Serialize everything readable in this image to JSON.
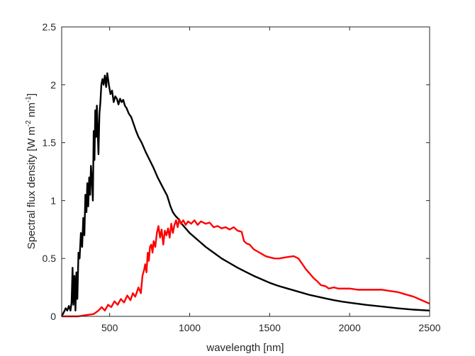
{
  "chart_data": {
    "type": "line",
    "title": "",
    "xlabel": "wavelength [nm]",
    "ylabel": {
      "prefix": "Spectral flux density [W m",
      "exp1": "-2",
      "mid": " nm",
      "exp2": "-1",
      "suffix": "]"
    },
    "xlim": [
      200,
      2500
    ],
    "ylim": [
      0,
      2.5
    ],
    "xticks": [
      500,
      1000,
      1500,
      2000,
      2500
    ],
    "xtick_labels": [
      "500",
      "1000",
      "1500",
      "2000",
      "2500"
    ],
    "yticks": [
      0,
      0.5,
      1,
      1.5,
      2,
      2.5
    ],
    "ytick_labels": [
      "0",
      "0.5",
      "1",
      "1.5",
      "2",
      "2.5"
    ],
    "grid": false,
    "legend": "none",
    "series": [
      {
        "color": "#000000",
        "points": [
          [
            200,
            0.0
          ],
          [
            215,
            0.04
          ],
          [
            225,
            0.07
          ],
          [
            235,
            0.05
          ],
          [
            245,
            0.09
          ],
          [
            255,
            0.05
          ],
          [
            262,
            0.12
          ],
          [
            268,
            0.42
          ],
          [
            273,
            0.1
          ],
          [
            280,
            0.35
          ],
          [
            286,
            0.05
          ],
          [
            292,
            0.38
          ],
          [
            298,
            0.15
          ],
          [
            305,
            0.55
          ],
          [
            312,
            0.5
          ],
          [
            320,
            0.72
          ],
          [
            328,
            0.6
          ],
          [
            335,
            0.85
          ],
          [
            342,
            0.7
          ],
          [
            348,
            1.05
          ],
          [
            355,
            0.9
          ],
          [
            360,
            1.15
          ],
          [
            366,
            0.95
          ],
          [
            372,
            1.2
          ],
          [
            378,
            1.05
          ],
          [
            383,
            1.3
          ],
          [
            390,
            1.15
          ],
          [
            395,
            1.0
          ],
          [
            400,
            1.6
          ],
          [
            405,
            1.35
          ],
          [
            410,
            1.78
          ],
          [
            416,
            1.55
          ],
          [
            420,
            1.82
          ],
          [
            425,
            1.6
          ],
          [
            430,
            1.4
          ],
          [
            436,
            1.75
          ],
          [
            442,
            1.85
          ],
          [
            448,
            2.0
          ],
          [
            455,
            2.05
          ],
          [
            462,
            2.0
          ],
          [
            470,
            2.08
          ],
          [
            478,
            1.98
          ],
          [
            485,
            2.1
          ],
          [
            495,
            2.0
          ],
          [
            505,
            1.92
          ],
          [
            515,
            1.95
          ],
          [
            525,
            1.85
          ],
          [
            535,
            1.9
          ],
          [
            545,
            1.88
          ],
          [
            555,
            1.83
          ],
          [
            565,
            1.88
          ],
          [
            575,
            1.85
          ],
          [
            585,
            1.87
          ],
          [
            595,
            1.82
          ],
          [
            605,
            1.8
          ],
          [
            620,
            1.75
          ],
          [
            635,
            1.72
          ],
          [
            650,
            1.66
          ],
          [
            665,
            1.6
          ],
          [
            680,
            1.55
          ],
          [
            700,
            1.5
          ],
          [
            725,
            1.42
          ],
          [
            750,
            1.35
          ],
          [
            775,
            1.28
          ],
          [
            800,
            1.2
          ],
          [
            830,
            1.12
          ],
          [
            860,
            1.04
          ],
          [
            880,
            0.95
          ],
          [
            895,
            0.9
          ],
          [
            910,
            0.87
          ],
          [
            930,
            0.84
          ],
          [
            950,
            0.8
          ],
          [
            975,
            0.76
          ],
          [
            1000,
            0.72
          ],
          [
            1050,
            0.66
          ],
          [
            1100,
            0.6
          ],
          [
            1150,
            0.55
          ],
          [
            1200,
            0.5
          ],
          [
            1250,
            0.46
          ],
          [
            1300,
            0.42
          ],
          [
            1350,
            0.385
          ],
          [
            1400,
            0.35
          ],
          [
            1450,
            0.32
          ],
          [
            1500,
            0.29
          ],
          [
            1550,
            0.265
          ],
          [
            1600,
            0.245
          ],
          [
            1650,
            0.225
          ],
          [
            1700,
            0.205
          ],
          [
            1750,
            0.185
          ],
          [
            1800,
            0.17
          ],
          [
            1850,
            0.155
          ],
          [
            1900,
            0.14
          ],
          [
            1950,
            0.128
          ],
          [
            2000,
            0.118
          ],
          [
            2100,
            0.1
          ],
          [
            2200,
            0.085
          ],
          [
            2300,
            0.07
          ],
          [
            2400,
            0.058
          ],
          [
            2500,
            0.05
          ]
        ]
      },
      {
        "color": "#ff0000",
        "points": [
          [
            200,
            0.0
          ],
          [
            300,
            0.0
          ],
          [
            350,
            0.01
          ],
          [
            400,
            0.02
          ],
          [
            430,
            0.05
          ],
          [
            450,
            0.08
          ],
          [
            470,
            0.05
          ],
          [
            490,
            0.1
          ],
          [
            510,
            0.08
          ],
          [
            530,
            0.13
          ],
          [
            550,
            0.1
          ],
          [
            570,
            0.15
          ],
          [
            590,
            0.12
          ],
          [
            610,
            0.18
          ],
          [
            630,
            0.14
          ],
          [
            645,
            0.2
          ],
          [
            660,
            0.17
          ],
          [
            680,
            0.25
          ],
          [
            695,
            0.2
          ],
          [
            705,
            0.35
          ],
          [
            715,
            0.4
          ],
          [
            722,
            0.45
          ],
          [
            730,
            0.38
          ],
          [
            738,
            0.55
          ],
          [
            745,
            0.48
          ],
          [
            752,
            0.6
          ],
          [
            760,
            0.62
          ],
          [
            768,
            0.55
          ],
          [
            775,
            0.65
          ],
          [
            785,
            0.6
          ],
          [
            795,
            0.72
          ],
          [
            805,
            0.78
          ],
          [
            815,
            0.68
          ],
          [
            825,
            0.75
          ],
          [
            835,
            0.62
          ],
          [
            845,
            0.74
          ],
          [
            855,
            0.7
          ],
          [
            865,
            0.76
          ],
          [
            875,
            0.68
          ],
          [
            885,
            0.8
          ],
          [
            895,
            0.72
          ],
          [
            905,
            0.79
          ],
          [
            915,
            0.83
          ],
          [
            925,
            0.77
          ],
          [
            935,
            0.84
          ],
          [
            945,
            0.8
          ],
          [
            960,
            0.83
          ],
          [
            975,
            0.79
          ],
          [
            990,
            0.82
          ],
          [
            1010,
            0.8
          ],
          [
            1030,
            0.83
          ],
          [
            1050,
            0.79
          ],
          [
            1070,
            0.82
          ],
          [
            1100,
            0.8
          ],
          [
            1125,
            0.81
          ],
          [
            1150,
            0.77
          ],
          [
            1175,
            0.78
          ],
          [
            1200,
            0.76
          ],
          [
            1225,
            0.77
          ],
          [
            1250,
            0.75
          ],
          [
            1275,
            0.77
          ],
          [
            1300,
            0.74
          ],
          [
            1325,
            0.73
          ],
          [
            1340,
            0.65
          ],
          [
            1355,
            0.63
          ],
          [
            1375,
            0.62
          ],
          [
            1400,
            0.58
          ],
          [
            1425,
            0.56
          ],
          [
            1450,
            0.54
          ],
          [
            1475,
            0.52
          ],
          [
            1500,
            0.51
          ],
          [
            1530,
            0.5
          ],
          [
            1560,
            0.5
          ],
          [
            1600,
            0.51
          ],
          [
            1650,
            0.52
          ],
          [
            1680,
            0.5
          ],
          [
            1700,
            0.46
          ],
          [
            1725,
            0.41
          ],
          [
            1750,
            0.37
          ],
          [
            1775,
            0.33
          ],
          [
            1800,
            0.3
          ],
          [
            1820,
            0.27
          ],
          [
            1850,
            0.26
          ],
          [
            1870,
            0.24
          ],
          [
            1900,
            0.25
          ],
          [
            1930,
            0.24
          ],
          [
            1970,
            0.24
          ],
          [
            2000,
            0.24
          ],
          [
            2050,
            0.23
          ],
          [
            2100,
            0.23
          ],
          [
            2150,
            0.23
          ],
          [
            2200,
            0.23
          ],
          [
            2250,
            0.22
          ],
          [
            2300,
            0.21
          ],
          [
            2350,
            0.19
          ],
          [
            2400,
            0.17
          ],
          [
            2450,
            0.14
          ],
          [
            2500,
            0.11
          ]
        ]
      }
    ]
  }
}
